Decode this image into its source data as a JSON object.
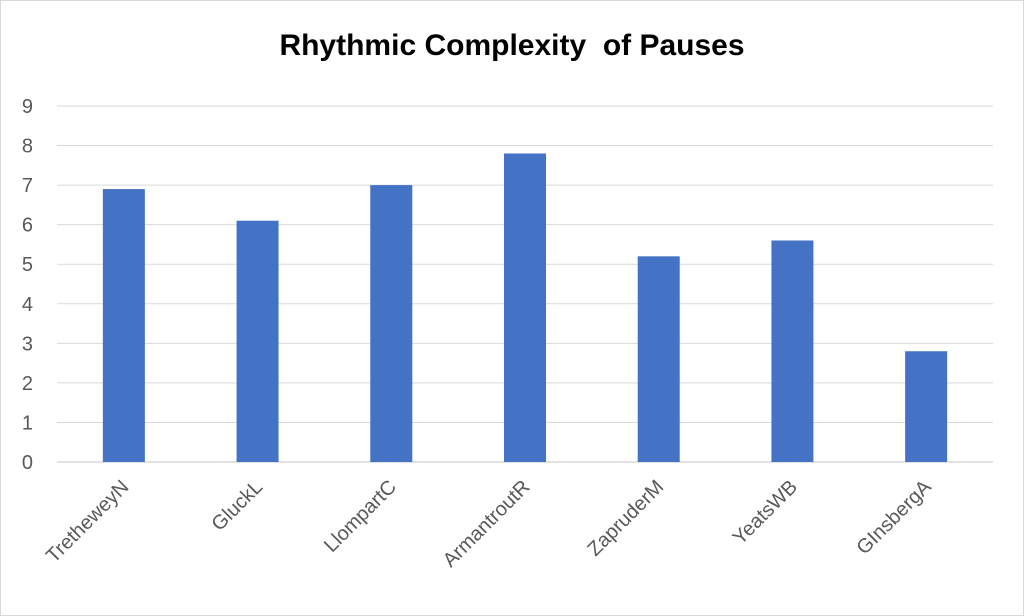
{
  "chart_data": {
    "type": "bar",
    "title": "Rhythmic Complexity  of Pauses",
    "xlabel": "",
    "ylabel": "",
    "categories": [
      "TretheweyN",
      "GluckL",
      "LlompartC",
      "ArmantroutR",
      "ZapruderM",
      "YeatsWB",
      "GInsbergA"
    ],
    "series": [
      {
        "values": [
          6.9,
          6.1,
          7.0,
          7.8,
          5.2,
          5.6,
          2.8
        ]
      }
    ],
    "ylim": [
      0,
      9
    ],
    "yticks": [
      "0",
      "1",
      "2",
      "3",
      "4",
      "5",
      "6",
      "7",
      "8",
      "9"
    ],
    "grid": true,
    "legend": "none",
    "bar_color": "#4472C4",
    "gridline_color": "#d9d9d9",
    "tick_label_color": "#595959"
  }
}
